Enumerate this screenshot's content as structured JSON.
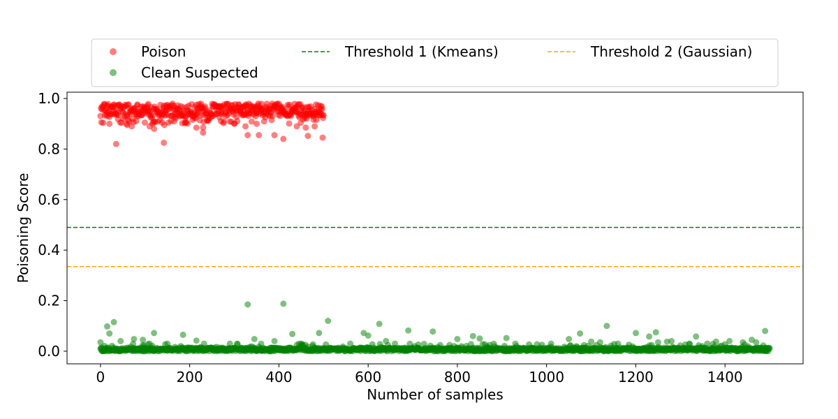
{
  "chart_data": {
    "type": "scatter",
    "xlabel": "Number of samples",
    "ylabel": "Poisoning Score",
    "xlim": [
      -75,
      1575
    ],
    "ylim": [
      -0.05,
      1.025
    ],
    "xticks": [
      0,
      200,
      400,
      600,
      800,
      1000,
      1200,
      1400
    ],
    "xtick_labels": [
      "0",
      "200",
      "400",
      "600",
      "800",
      "1000",
      "1200",
      "1400"
    ],
    "yticks": [
      0.0,
      0.2,
      0.4,
      0.6,
      0.8,
      1.0
    ],
    "ytick_labels": [
      "0.0",
      "0.2",
      "0.4",
      "0.6",
      "0.8",
      "1.0"
    ],
    "grid": false,
    "legend_placement": "top-center-outside",
    "legend": [
      {
        "label": "Poison",
        "kind": "marker",
        "color": "#ff0000"
      },
      {
        "label": "Clean Suspected",
        "kind": "marker",
        "color": "#008000"
      },
      {
        "label": "Threshold 1 (Kmeans)",
        "kind": "dashed-line",
        "color": "#008000"
      },
      {
        "label": "Threshold 2 (Gaussian)",
        "kind": "dashed-line",
        "color": "#ffa500"
      }
    ],
    "thresholds": [
      {
        "name": "Threshold 1 (Kmeans)",
        "y": 0.49,
        "color": "#008000"
      },
      {
        "name": "Threshold 2 (Gaussian)",
        "y": 0.335,
        "color": "#ffa500"
      }
    ],
    "series": [
      {
        "name": "Poison",
        "color": "#ff0000",
        "opacity": 0.5,
        "x_range": [
          0,
          500
        ],
        "count": 500,
        "typical_range": [
          0.93,
          0.98
        ],
        "outliers": [
          {
            "x": 35,
            "y": 0.82
          },
          {
            "x": 142,
            "y": 0.825
          },
          {
            "x": 410,
            "y": 0.84
          },
          {
            "x": 498,
            "y": 0.845
          },
          {
            "x": 330,
            "y": 0.855
          },
          {
            "x": 355,
            "y": 0.855
          },
          {
            "x": 390,
            "y": 0.855
          },
          {
            "x": 465,
            "y": 0.852
          },
          {
            "x": 230,
            "y": 0.865
          },
          {
            "x": 215,
            "y": 0.885
          },
          {
            "x": 230,
            "y": 0.885
          },
          {
            "x": 440,
            "y": 0.89
          },
          {
            "x": 480,
            "y": 0.89
          },
          {
            "x": 460,
            "y": 0.885
          },
          {
            "x": 20,
            "y": 0.9
          },
          {
            "x": 60,
            "y": 0.895
          },
          {
            "x": 70,
            "y": 0.89
          },
          {
            "x": 110,
            "y": 0.89
          },
          {
            "x": 120,
            "y": 0.88
          },
          {
            "x": 143,
            "y": 0.895
          },
          {
            "x": 300,
            "y": 0.9
          },
          {
            "x": 325,
            "y": 0.89
          },
          {
            "x": 350,
            "y": 0.9
          },
          {
            "x": 80,
            "y": 0.91
          },
          {
            "x": 165,
            "y": 0.91
          },
          {
            "x": 190,
            "y": 0.905
          },
          {
            "x": 270,
            "y": 0.91
          }
        ]
      },
      {
        "name": "Clean Suspected",
        "color": "#008000",
        "opacity": 0.5,
        "x_range": [
          0,
          1500
        ],
        "count": 1500,
        "typical_range": [
          0.0,
          0.02
        ],
        "outliers": [
          {
            "x": 330,
            "y": 0.185
          },
          {
            "x": 410,
            "y": 0.188
          },
          {
            "x": 510,
            "y": 0.12
          },
          {
            "x": 30,
            "y": 0.115
          },
          {
            "x": 15,
            "y": 0.098
          },
          {
            "x": 20,
            "y": 0.07
          },
          {
            "x": 625,
            "y": 0.108
          },
          {
            "x": 1135,
            "y": 0.1
          },
          {
            "x": 690,
            "y": 0.082
          },
          {
            "x": 745,
            "y": 0.078
          },
          {
            "x": 1490,
            "y": 0.08
          },
          {
            "x": 1075,
            "y": 0.07
          },
          {
            "x": 1245,
            "y": 0.075
          },
          {
            "x": 1200,
            "y": 0.072
          },
          {
            "x": 120,
            "y": 0.072
          },
          {
            "x": 490,
            "y": 0.072
          },
          {
            "x": 430,
            "y": 0.068
          },
          {
            "x": 600,
            "y": 0.062
          },
          {
            "x": 590,
            "y": 0.072
          },
          {
            "x": 185,
            "y": 0.065
          },
          {
            "x": 1335,
            "y": 0.058
          },
          {
            "x": 835,
            "y": 0.06
          },
          {
            "x": 1230,
            "y": 0.058
          },
          {
            "x": 910,
            "y": 0.052
          },
          {
            "x": 850,
            "y": 0.05
          },
          {
            "x": 1050,
            "y": 0.048
          },
          {
            "x": 800,
            "y": 0.048
          },
          {
            "x": 75,
            "y": 0.048
          },
          {
            "x": 95,
            "y": 0.045
          },
          {
            "x": 345,
            "y": 0.048
          },
          {
            "x": 45,
            "y": 0.04
          },
          {
            "x": 215,
            "y": 0.042
          },
          {
            "x": 390,
            "y": 0.04
          },
          {
            "x": 640,
            "y": 0.04
          },
          {
            "x": 1270,
            "y": 0.038
          },
          {
            "x": 1380,
            "y": 0.038
          },
          {
            "x": 1470,
            "y": 0.035
          },
          {
            "x": 1440,
            "y": 0.035
          },
          {
            "x": 1410,
            "y": 0.04
          },
          {
            "x": 1460,
            "y": 0.045
          },
          {
            "x": 1280,
            "y": 0.04
          },
          {
            "x": 1100,
            "y": 0.038
          },
          {
            "x": 1120,
            "y": 0.035
          },
          {
            "x": 1250,
            "y": 0.035
          },
          {
            "x": 0,
            "y": 0.035
          },
          {
            "x": 110,
            "y": 0.03
          },
          {
            "x": 150,
            "y": 0.03
          },
          {
            "x": 290,
            "y": 0.03
          },
          {
            "x": 450,
            "y": 0.03
          },
          {
            "x": 560,
            "y": 0.03
          },
          {
            "x": 660,
            "y": 0.03
          },
          {
            "x": 930,
            "y": 0.03
          },
          {
            "x": 1010,
            "y": 0.03
          },
          {
            "x": 1160,
            "y": 0.03
          },
          {
            "x": 1360,
            "y": 0.03
          },
          {
            "x": 1320,
            "y": 0.03
          }
        ]
      }
    ]
  }
}
